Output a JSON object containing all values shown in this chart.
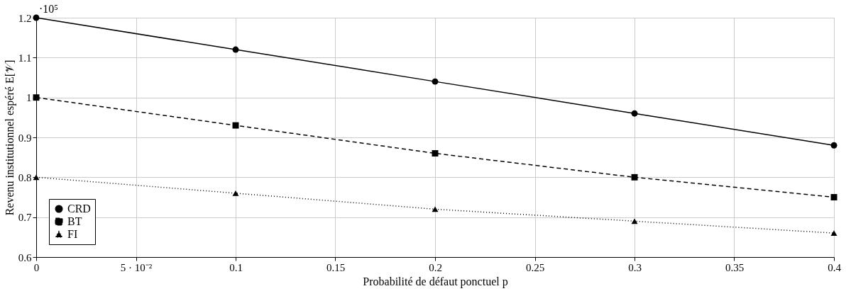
{
  "chart_data": {
    "type": "line",
    "xlabel": "Probabilité de défaut ponctuel p",
    "ylabel": "Revenu institutionnel espéré E[𝒱]",
    "annotations": [
      "·10⁵"
    ],
    "x": [
      0,
      0.1,
      0.2,
      0.3,
      0.4
    ],
    "series": [
      {
        "name": "CRD",
        "color": "#000000",
        "marker": "circle",
        "line_style": "solid",
        "values": [
          1.2,
          1.12,
          1.04,
          0.96,
          0.88
        ]
      },
      {
        "name": "BT",
        "color": "#000000",
        "marker": "square",
        "line_style": "dashed",
        "values": [
          1.0,
          0.93,
          0.86,
          0.8,
          0.75
        ]
      },
      {
        "name": "FI",
        "color": "#000000",
        "marker": "triangle",
        "line_style": "dotted",
        "values": [
          0.8,
          0.76,
          0.72,
          0.69,
          0.66
        ]
      }
    ],
    "xlim": [
      0,
      0.4
    ],
    "xticks": [
      0,
      {
        "value": 0.05,
        "label": "5 · 10⁻²"
      },
      0.1,
      0.15,
      0.2,
      0.25,
      0.3,
      0.35,
      0.4
    ],
    "ylim": [
      0.6,
      1.2
    ],
    "yticks": [
      0.6,
      0.7,
      0.8,
      0.9,
      1,
      1.1,
      1.2
    ],
    "grid": true,
    "legend": "bottom left"
  }
}
